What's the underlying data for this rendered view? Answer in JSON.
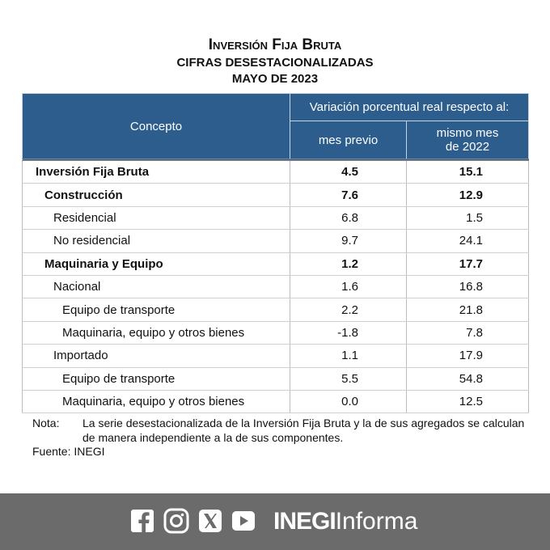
{
  "header": {
    "title": "Inversión Fija Bruta",
    "subtitle": "CIFRAS DESESTACIONALIZADAS",
    "period": "MAYO DE 2023"
  },
  "table": {
    "columns": {
      "concept": "Concepto",
      "group": "Variación porcentual real respecto al:",
      "prev": "mes previo",
      "year": [
        "mismo mes",
        "de 2022"
      ]
    },
    "rows": [
      [
        "Inversión Fija Bruta",
        "4.5",
        "15.1"
      ],
      [
        "Construcción",
        "7.6",
        "12.9"
      ],
      [
        "Residencial",
        "6.8",
        "1.5"
      ],
      [
        "No residencial",
        "9.7",
        "24.1"
      ],
      [
        "Maquinaria y Equipo",
        "1.2",
        "17.7"
      ],
      [
        "Nacional",
        "1.6",
        "16.8"
      ],
      [
        "Equipo de transporte",
        "2.2",
        "21.8"
      ],
      [
        "Maquinaria, equipo y otros bienes",
        "-1.8",
        "7.8"
      ],
      [
        "Importado",
        "1.1",
        "17.9"
      ],
      [
        "Equipo de transporte",
        "5.5",
        "54.8"
      ],
      [
        "Maquinaria, equipo y otros bienes",
        "0.0",
        "12.5"
      ]
    ]
  },
  "note": {
    "label": "Nota:",
    "text": "La serie desestacionalizada de la Inversión Fija Bruta y la de sus agregados se calculan de manera independiente a la de sus componentes."
  },
  "source": "Fuente: INEGI",
  "footer": {
    "brand_bold": "INEGI",
    "brand": "Informa"
  }
}
